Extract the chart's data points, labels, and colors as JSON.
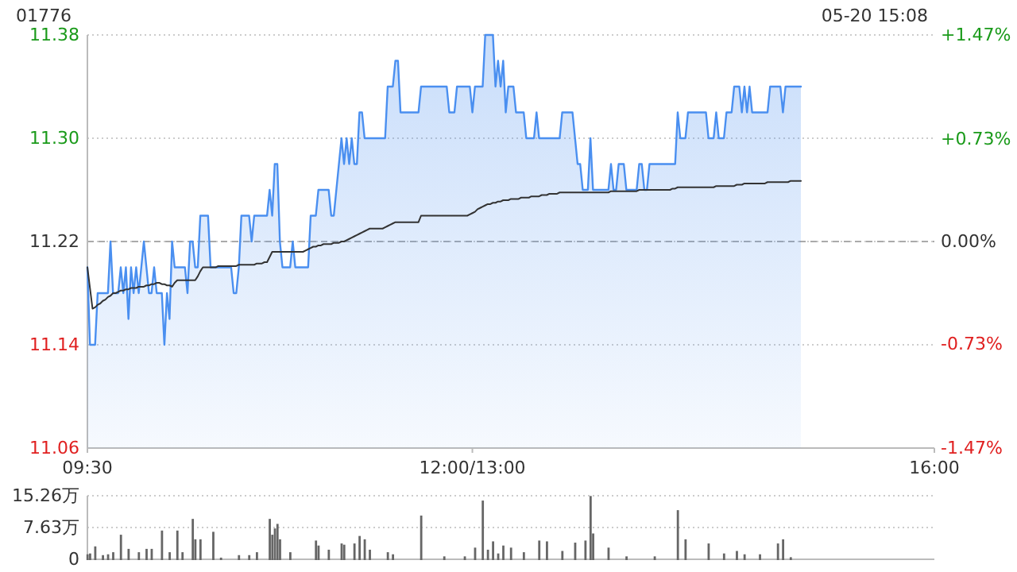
{
  "chart_data": [
    {
      "type": "line",
      "title": "01776",
      "annotations": [
        "05-20 15:08"
      ],
      "categories": [
        "09:30",
        null,
        null,
        null,
        null,
        null,
        null,
        null,
        null,
        null,
        null,
        null,
        null,
        null,
        null,
        null,
        null,
        null,
        null,
        null,
        null,
        null,
        null,
        null,
        null,
        null,
        null,
        null,
        null,
        null,
        null,
        null,
        null,
        null,
        null,
        null,
        null,
        null,
        null,
        null,
        null,
        null,
        null,
        null,
        null,
        null,
        null,
        null,
        null,
        null,
        null,
        null,
        null,
        null,
        null,
        null,
        null,
        null,
        null,
        null,
        null,
        null,
        null,
        null,
        null,
        null,
        null,
        null,
        null,
        null,
        null,
        null,
        null,
        null,
        null,
        null,
        null,
        null,
        null,
        null,
        null,
        null,
        null,
        null,
        null,
        null,
        null,
        null,
        null,
        null,
        null,
        null,
        null,
        null,
        null,
        null,
        null,
        null,
        null,
        null,
        null,
        null,
        null,
        null,
        null,
        null,
        null,
        null,
        null,
        null,
        null,
        null,
        null,
        null,
        null,
        null,
        null,
        null,
        null,
        null,
        null,
        null,
        null,
        null,
        null,
        null,
        null,
        null,
        null,
        null,
        null,
        null,
        null,
        null,
        null,
        null,
        null,
        null,
        null,
        null,
        null,
        null,
        null,
        null,
        null,
        null,
        null,
        null,
        null,
        null,
        "12:00/13:00",
        null,
        null,
        null,
        null,
        null,
        null,
        null,
        null,
        null,
        null,
        null,
        null,
        null,
        null,
        null,
        null,
        null,
        null,
        null,
        null,
        null,
        null,
        null,
        null,
        null,
        null,
        null,
        null,
        null,
        null,
        null,
        null,
        null,
        null,
        null,
        null,
        null,
        null,
        null,
        null,
        null,
        null,
        null,
        null,
        null,
        null,
        null,
        null,
        null,
        null,
        null,
        null,
        null,
        null,
        null,
        null,
        null,
        null,
        null,
        null,
        null,
        null,
        null,
        null,
        null,
        null,
        null,
        null,
        null,
        null,
        null,
        null,
        null,
        null,
        null,
        null,
        null,
        null,
        null,
        null,
        null,
        null,
        null,
        null,
        null,
        null,
        null,
        null,
        null,
        null,
        null,
        null,
        null,
        null,
        null,
        null,
        null,
        null,
        null,
        null,
        null,
        null,
        null,
        null,
        null,
        null,
        null,
        null,
        null,
        null,
        null,
        null,
        null,
        null,
        null,
        null,
        null,
        null,
        null,
        null,
        null,
        null,
        null,
        null,
        null,
        null,
        null,
        null,
        null,
        null,
        null,
        null,
        null,
        null,
        null,
        null,
        null,
        null,
        null,
        null,
        null,
        null,
        null,
        null,
        null,
        null,
        null,
        null,
        null,
        null,
        null,
        null,
        null,
        null,
        null,
        null,
        null,
        null,
        null,
        null,
        null,
        null,
        null,
        null,
        null,
        null,
        null,
        null,
        null,
        null,
        null,
        null,
        null,
        null,
        null,
        null,
        null,
        null,
        null,
        "16:00"
      ],
      "ylim": [
        11.06,
        11.38
      ],
      "yticks": [
        11.06,
        11.14,
        11.22,
        {
          "value": 11.3,
          "label": "11.30"
        },
        11.38
      ],
      "y2lim": [
        -1.47,
        1.47
      ],
      "y2ticks": [
        {
          "value": -1.47,
          "label": "-1.47%"
        },
        {
          "value": -0.73,
          "label": "-0.73%"
        },
        {
          "value": 0,
          "label": "0.00%"
        },
        {
          "value": 0.73,
          "label": "+0.73%"
        },
        {
          "value": 1.47,
          "label": "+1.47%"
        }
      ],
      "grid": "y",
      "ref_lines": [
        {
          "axis": "y",
          "value": 11.22,
          "line_style": "dashed",
          "color": "#aaaaaa"
        }
      ],
      "series": [
        {
          "type": "area",
          "color": "#4a8ff0",
          "values": [
            11.2,
            11.14,
            11.14,
            11.14,
            11.18,
            11.18,
            11.18,
            11.18,
            11.18,
            11.22,
            11.18,
            11.18,
            11.18,
            11.2,
            11.18,
            11.2,
            11.16,
            11.2,
            11.18,
            11.2,
            11.18,
            11.2,
            11.22,
            11.2,
            11.18,
            11.18,
            11.2,
            11.18,
            11.18,
            11.18,
            11.14,
            11.18,
            11.16,
            11.22,
            11.2,
            11.2,
            11.2,
            11.2,
            11.2,
            11.18,
            11.22,
            11.22,
            11.2,
            11.2,
            11.24,
            11.24,
            11.24,
            11.24,
            11.2,
            11.2,
            11.2,
            11.2,
            11.2,
            11.2,
            11.2,
            11.2,
            11.2,
            11.18,
            11.18,
            11.2,
            11.24,
            11.24,
            11.24,
            11.24,
            11.22,
            11.24,
            11.24,
            11.24,
            11.24,
            11.24,
            11.24,
            11.26,
            11.24,
            11.28,
            11.28,
            11.22,
            11.2,
            11.2,
            11.2,
            11.2,
            11.22,
            11.2,
            11.2,
            11.2,
            11.2,
            11.2,
            11.2,
            11.24,
            11.24,
            11.24,
            11.26,
            11.26,
            11.26,
            11.26,
            11.26,
            11.24,
            11.24,
            11.26,
            11.28,
            11.3,
            11.28,
            11.3,
            11.28,
            11.3,
            11.28,
            11.28,
            11.32,
            11.32,
            11.3,
            11.3,
            11.3,
            11.3,
            11.3,
            11.3,
            11.3,
            11.3,
            11.3,
            11.34,
            11.34,
            11.34,
            11.36,
            11.36,
            11.32,
            11.32,
            11.32,
            11.32,
            11.32,
            11.32,
            11.32,
            11.32,
            11.34,
            11.34,
            11.34,
            11.34,
            11.34,
            11.34,
            11.34,
            11.34,
            11.34,
            11.34,
            11.34,
            11.32,
            11.32,
            11.32,
            11.34,
            11.34,
            11.34,
            11.34,
            11.34,
            11.34,
            11.32,
            11.34,
            11.34,
            11.34,
            11.34,
            11.38,
            11.38,
            11.38,
            11.38,
            11.34,
            11.36,
            11.34,
            11.36,
            11.32,
            11.34,
            11.34,
            11.34,
            11.32,
            11.32,
            11.32,
            11.32,
            11.3,
            11.3,
            11.3,
            11.3,
            11.32,
            11.3,
            11.3,
            11.3,
            11.3,
            11.3,
            11.3,
            11.3,
            11.3,
            11.3,
            11.32,
            11.32,
            11.32,
            11.32,
            11.32,
            11.3,
            11.28,
            11.28,
            11.26,
            11.26,
            11.26,
            11.3,
            11.26,
            11.26,
            11.26,
            11.26,
            11.26,
            11.26,
            11.26,
            11.28,
            11.26,
            11.26,
            11.28,
            11.28,
            11.28,
            11.26,
            11.26,
            11.26,
            11.26,
            11.26,
            11.28,
            11.28,
            11.26,
            11.26,
            11.28,
            11.28,
            11.28,
            11.28,
            11.28,
            11.28,
            11.28,
            11.28,
            11.28,
            11.28,
            11.28,
            11.32,
            11.3,
            11.3,
            11.3,
            11.32,
            11.32,
            11.32,
            11.32,
            11.32,
            11.32,
            11.32,
            11.32,
            11.3,
            11.3,
            11.3,
            11.32,
            11.3,
            11.3,
            11.3,
            11.32,
            11.32,
            11.32,
            11.34,
            11.34,
            11.34,
            11.32,
            11.34,
            11.32,
            11.34,
            11.32,
            11.32,
            11.32,
            11.32,
            11.32,
            11.32,
            11.32,
            11.34,
            11.34,
            11.34,
            11.34,
            11.34,
            11.32,
            11.34,
            11.34,
            11.34,
            11.34,
            11.34,
            11.34,
            11.34,
            null,
            null,
            null,
            null,
            null,
            null,
            null,
            null,
            null,
            null,
            null,
            null,
            null,
            null,
            null,
            null,
            null,
            null,
            null,
            null,
            null,
            null,
            null,
            null,
            null,
            null,
            null,
            null,
            null,
            null,
            null,
            null,
            null,
            null,
            null,
            null,
            null,
            null,
            null,
            null,
            null,
            null,
            null,
            null,
            null,
            null,
            null,
            null,
            null,
            null,
            null,
            null
          ]
        },
        {
          "color": "#333333",
          "values": [
            11.2,
            11.184,
            11.168,
            11.169,
            11.171,
            11.172,
            11.174,
            11.175,
            11.177,
            11.178,
            11.18,
            11.18,
            11.181,
            11.182,
            11.182,
            11.183,
            11.183,
            11.184,
            11.184,
            11.184,
            11.185,
            11.185,
            11.185,
            11.186,
            11.186,
            11.187,
            11.187,
            11.188,
            11.188,
            11.187,
            11.187,
            11.186,
            11.186,
            11.185,
            11.188,
            11.19,
            11.19,
            11.19,
            11.19,
            11.19,
            11.19,
            11.19,
            11.19,
            11.193,
            11.197,
            11.2,
            11.2,
            11.2,
            11.2,
            11.2,
            11.2,
            11.201,
            11.201,
            11.201,
            11.201,
            11.201,
            11.201,
            11.201,
            11.201,
            11.202,
            11.202,
            11.202,
            11.202,
            11.202,
            11.202,
            11.202,
            11.203,
            11.203,
            11.203,
            11.204,
            11.204,
            11.208,
            11.212,
            11.212,
            11.212,
            11.212,
            11.212,
            11.212,
            11.212,
            11.212,
            11.212,
            11.212,
            11.212,
            11.212,
            11.212,
            11.213,
            11.214,
            11.215,
            11.216,
            11.216,
            11.217,
            11.217,
            11.218,
            11.218,
            11.218,
            11.218,
            11.219,
            11.219,
            11.219,
            11.22,
            11.22,
            11.221,
            11.222,
            11.223,
            11.224,
            11.225,
            11.226,
            11.227,
            11.228,
            11.229,
            11.23,
            11.23,
            11.23,
            11.23,
            11.23,
            11.23,
            11.231,
            11.232,
            11.233,
            11.234,
            11.235,
            11.235,
            11.235,
            11.235,
            11.235,
            11.235,
            11.235,
            11.235,
            11.235,
            11.235,
            11.24,
            11.24,
            11.24,
            11.24,
            11.24,
            11.24,
            11.24,
            11.24,
            11.24,
            11.24,
            11.24,
            11.24,
            11.24,
            11.24,
            11.24,
            11.24,
            11.24,
            11.24,
            11.24,
            11.241,
            11.242,
            11.243,
            11.245,
            11.246,
            11.247,
            11.248,
            11.249,
            11.249,
            11.25,
            11.25,
            11.251,
            11.251,
            11.252,
            11.252,
            11.252,
            11.253,
            11.253,
            11.253,
            11.253,
            11.254,
            11.254,
            11.254,
            11.254,
            11.255,
            11.255,
            11.255,
            11.255,
            11.256,
            11.256,
            11.256,
            11.257,
            11.257,
            11.257,
            11.257,
            11.258,
            11.258,
            11.258,
            11.258,
            11.258,
            11.258,
            11.258,
            11.258,
            11.258,
            11.258,
            11.258,
            11.258,
            11.258,
            11.258,
            11.258,
            11.258,
            11.258,
            11.258,
            11.258,
            11.258,
            11.259,
            11.259,
            11.259,
            11.259,
            11.259,
            11.259,
            11.259,
            11.259,
            11.259,
            11.259,
            11.259,
            11.26,
            11.26,
            11.26,
            11.26,
            11.26,
            11.26,
            11.26,
            11.26,
            11.26,
            11.26,
            11.26,
            11.26,
            11.26,
            11.261,
            11.261,
            11.262,
            11.262,
            11.262,
            11.262,
            11.262,
            11.262,
            11.262,
            11.262,
            11.262,
            11.262,
            11.262,
            11.262,
            11.262,
            11.262,
            11.262,
            11.263,
            11.263,
            11.263,
            11.263,
            11.263,
            11.263,
            11.263,
            11.263,
            11.264,
            11.264,
            11.264,
            11.265,
            11.265,
            11.265,
            11.265,
            11.265,
            11.265,
            11.265,
            11.265,
            11.265,
            11.266,
            11.266,
            11.266,
            11.266,
            11.266,
            11.266,
            11.266,
            11.266,
            11.266,
            11.267,
            11.267,
            11.267,
            11.267,
            11.267,
            null,
            null,
            null,
            null,
            null,
            null,
            null,
            null,
            null,
            null,
            null,
            null,
            null,
            null,
            null,
            null,
            null,
            null,
            null,
            null,
            null,
            null,
            null,
            null,
            null,
            null,
            null,
            null,
            null,
            null,
            null,
            null,
            null,
            null,
            null,
            null,
            null,
            null,
            null,
            null,
            null,
            null,
            null,
            null,
            null,
            null,
            null,
            null,
            null,
            null,
            null,
            null
          ]
        }
      ]
    },
    {
      "type": "bar",
      "ylim": [
        0,
        15.26
      ],
      "yticks": [
        0,
        {
          "value": 7.63,
          "label": "7.63万"
        },
        {
          "value": 15.26,
          "label": "15.26万"
        }
      ],
      "grid": "y",
      "tick_labels": "y",
      "series": [
        {
          "color": "#666666",
          "values": [
            1.2,
            1.4,
            null,
            3.1,
            null,
            null,
            1.0,
            null,
            1.2,
            null,
            1.7,
            null,
            null,
            5.9,
            null,
            null,
            2.5,
            null,
            null,
            null,
            1.7,
            null,
            null,
            2.5,
            null,
            2.5,
            null,
            null,
            null,
            6.9,
            null,
            null,
            1.7,
            null,
            null,
            6.9,
            null,
            1.7,
            null,
            null,
            null,
            9.7,
            4.8,
            null,
            4.8,
            null,
            null,
            null,
            null,
            6.6,
            null,
            null,
            0.4,
            null,
            null,
            null,
            null,
            null,
            null,
            1.0,
            null,
            null,
            null,
            1.0,
            null,
            null,
            1.7,
            null,
            null,
            null,
            null,
            9.7,
            5.9,
            7.4,
            8.5,
            4.8,
            null,
            null,
            null,
            1.7,
            null,
            null,
            null,
            null,
            null,
            null,
            null,
            null,
            null,
            4.5,
            3.3,
            null,
            null,
            null,
            2.3,
            null,
            null,
            null,
            null,
            3.8,
            3.5,
            null,
            null,
            null,
            3.8,
            null,
            5.6,
            null,
            4.8,
            null,
            2.3,
            null,
            null,
            null,
            null,
            null,
            null,
            1.7,
            null,
            1.2,
            null,
            null,
            null,
            null,
            null,
            null,
            null,
            null,
            null,
            null,
            10.5,
            null,
            null,
            null,
            null,
            null,
            null,
            null,
            null,
            0.7,
            null,
            null,
            null,
            null,
            null,
            null,
            null,
            0.7,
            null,
            null,
            null,
            2.8,
            null,
            null,
            14.1,
            null,
            2.3,
            null,
            4.3,
            null,
            1.4,
            null,
            3.3,
            null,
            null,
            2.8,
            null,
            null,
            null,
            null,
            1.7,
            null,
            null,
            null,
            null,
            null,
            4.5,
            null,
            null,
            4.3,
            null,
            null,
            null,
            null,
            null,
            2.0,
            null,
            null,
            null,
            null,
            4.0,
            null,
            null,
            null,
            4.5,
            null,
            15.2,
            6.2,
            null,
            null,
            null,
            null,
            null,
            2.8,
            null,
            null,
            null,
            null,
            null,
            null,
            0.7,
            null,
            null,
            null,
            null,
            null,
            null,
            null,
            null,
            null,
            null,
            0.7,
            null,
            null,
            null,
            null,
            null,
            null,
            null,
            null,
            11.8,
            null,
            null,
            4.8,
            null,
            null,
            null,
            null,
            null,
            null,
            null,
            null,
            3.8,
            null,
            null,
            null,
            null,
            null,
            1.4,
            null,
            null,
            null,
            null,
            2.0,
            null,
            null,
            1.2,
            null,
            null,
            null,
            null,
            null,
            1.2,
            null,
            null,
            null,
            null,
            null,
            null,
            3.8,
            null,
            4.8,
            null,
            null,
            0.5,
            null,
            null,
            null,
            null,
            null,
            null,
            null,
            null,
            null,
            null,
            null,
            null,
            null,
            null,
            null,
            null,
            null,
            null,
            null,
            null,
            null,
            null,
            null,
            null,
            null,
            null,
            null,
            null,
            null,
            null,
            null,
            null,
            null,
            null,
            null,
            null,
            null,
            null,
            null,
            null,
            null,
            null,
            null,
            null,
            null,
            null,
            null,
            null,
            null,
            null,
            null,
            null,
            null,
            null,
            null,
            null
          ]
        }
      ]
    }
  ]
}
